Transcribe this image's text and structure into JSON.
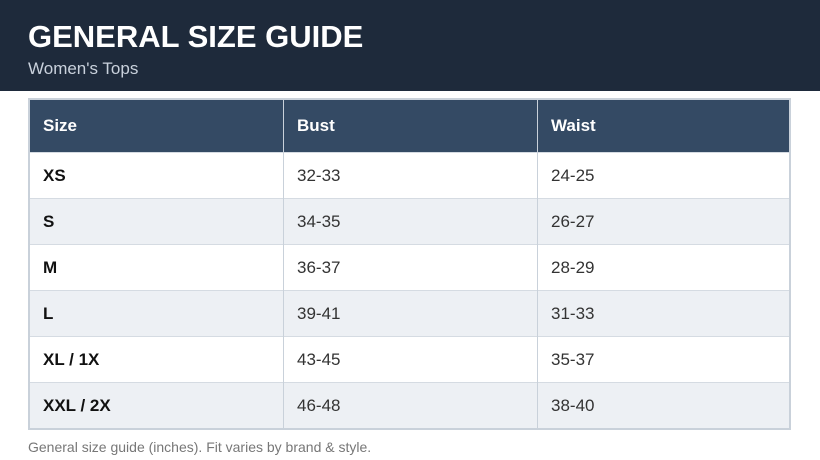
{
  "header": {
    "title": "GENERAL SIZE GUIDE",
    "subtitle": "Women's Tops"
  },
  "table": {
    "columns": [
      "Size",
      "Bust",
      "Waist"
    ],
    "rows": [
      [
        "XS",
        "32-33",
        "24-25"
      ],
      [
        "S",
        "34-35",
        "26-27"
      ],
      [
        "M",
        "36-37",
        "28-29"
      ],
      [
        "L",
        "39-41",
        "31-33"
      ],
      [
        "XL / 1X",
        "43-45",
        "35-37"
      ],
      [
        "XXL / 2X",
        "46-48",
        "38-40"
      ]
    ]
  },
  "footer": {
    "note": "General size guide (inches). Fit varies by brand & style."
  }
}
